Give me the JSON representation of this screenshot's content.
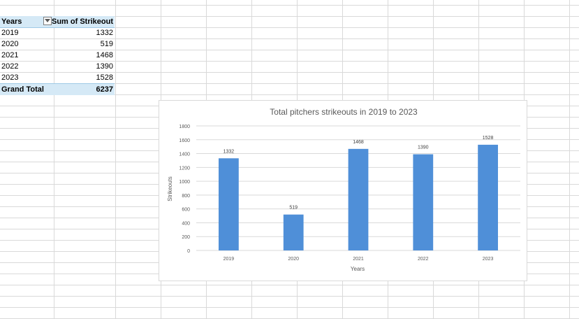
{
  "pivot": {
    "header_rows": "Years",
    "header_values": "Sum of Strikeout",
    "rows": [
      {
        "label": "2019",
        "value": "1332"
      },
      {
        "label": "2020",
        "value": "519"
      },
      {
        "label": "2021",
        "value": "1468"
      },
      {
        "label": "2022",
        "value": "1390"
      },
      {
        "label": "2023",
        "value": "1528"
      }
    ],
    "total_label": "Grand Total",
    "total_value": "6237"
  },
  "chart_data": {
    "type": "bar",
    "title": "Total pitchers strikeouts  in 2019 to 2023",
    "xlabel": "Years",
    "ylabel": "Strikeouts",
    "categories": [
      "2019",
      "2020",
      "2021",
      "2022",
      "2023"
    ],
    "values": [
      1332,
      519,
      1468,
      1390,
      1528
    ],
    "data_labels": [
      "1332",
      "519",
      "1468",
      "1390",
      "1528"
    ],
    "ylim": [
      0,
      1800
    ],
    "yticks": [
      "0",
      "200",
      "400",
      "600",
      "800",
      "1000",
      "1200",
      "1400",
      "1600",
      "1800"
    ],
    "grid": true,
    "bar_color": "#4f8fd8"
  }
}
